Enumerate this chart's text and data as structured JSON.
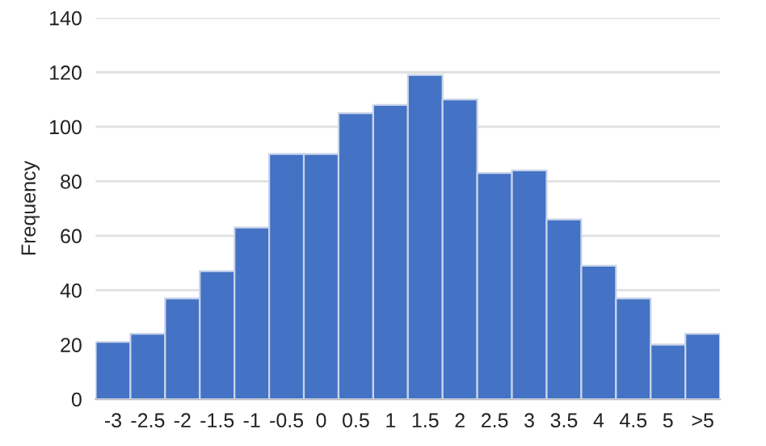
{
  "chart_data": {
    "type": "bar",
    "ylabel": "Frequency",
    "categories": [
      "-3",
      "-2.5",
      "-2",
      "-1.5",
      "-1",
      "-0.5",
      "0",
      "0.5",
      "1",
      "1.5",
      "2",
      "2.5",
      "3",
      "3.5",
      "4",
      "4.5",
      "5",
      ">5"
    ],
    "values": [
      21,
      24,
      37,
      47,
      63,
      90,
      90,
      105,
      108,
      119,
      110,
      83,
      84,
      66,
      49,
      37,
      20,
      24
    ],
    "color": "#4472c4",
    "ylim": [
      0,
      140
    ],
    "yticks": [
      0,
      20,
      40,
      60,
      80,
      100,
      120,
      140
    ],
    "grid": "y",
    "legend": false
  }
}
